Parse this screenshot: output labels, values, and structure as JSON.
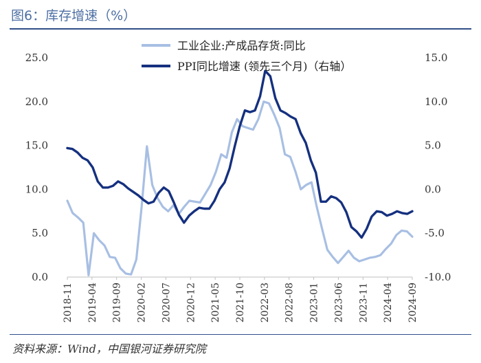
{
  "title": "图6：库存增速（%）",
  "source": "资料来源：Wind，中国银河证券研究院",
  "colors": {
    "series1": "#a8bfe3",
    "series2": "#15307f",
    "rule": "#2f4f86",
    "title": "#4d6fa3"
  },
  "chart_data": {
    "type": "line",
    "title": "库存增速（%）",
    "x_ticks": [
      "2018-11",
      "2019-04",
      "2019-09",
      "2020-02",
      "2020-07",
      "2020-12",
      "2021-05",
      "2021-10",
      "2022-03",
      "2022-08",
      "2023-01",
      "2023-06",
      "2023-11",
      "2024-04",
      "2024-09"
    ],
    "y_left": {
      "range": [
        0,
        25
      ],
      "ticks": [
        "0.0",
        "5.0",
        "10.0",
        "15.0",
        "20.0",
        "25.0"
      ],
      "tick_values": [
        0,
        5,
        10,
        15,
        20,
        25
      ]
    },
    "y_right": {
      "range": [
        -10,
        15
      ],
      "ticks": [
        "-10.0",
        "-5.0",
        "0.0",
        "5.0",
        "10.0",
        "15.0"
      ],
      "tick_values": [
        -10,
        -5,
        0,
        5,
        10,
        15
      ]
    },
    "legend": {
      "placement": "top-center"
    },
    "series": [
      {
        "name": "工业企业:产成品存货:同比",
        "axis": "left",
        "values": [
          8.7,
          7.3,
          6.8,
          6.2,
          0.2,
          5.0,
          4.2,
          3.6,
          2.3,
          2.2,
          1.0,
          0.4,
          0.3,
          2.0,
          8.0,
          14.9,
          10.5,
          9.0,
          8.0,
          7.5,
          8.2,
          7.2,
          8.0,
          8.7,
          8.6,
          8.5,
          9.5,
          10.5,
          12.0,
          14.0,
          13.6,
          16.5,
          18.0,
          17.2,
          17.0,
          16.8,
          18.0,
          20.0,
          19.8,
          18.5,
          17.0,
          14.0,
          13.7,
          12.0,
          10.0,
          10.5,
          10.8,
          8.0,
          5.5,
          3.1,
          2.3,
          1.6,
          2.3,
          3.0,
          2.2,
          1.8,
          2.0,
          2.2,
          2.3,
          2.5,
          3.2,
          3.8,
          4.8,
          5.3,
          5.2,
          4.6
        ]
      },
      {
        "name": "PPI同比增速 (领先三个月)（右轴）",
        "axis": "right",
        "values": [
          4.7,
          4.6,
          4.2,
          3.6,
          3.3,
          2.5,
          0.9,
          0.2,
          0.2,
          0.4,
          0.9,
          0.6,
          0.1,
          -0.3,
          -0.7,
          -1.2,
          -1.6,
          -1.4,
          -0.4,
          0.2,
          -0.2,
          -1.5,
          -2.9,
          -3.8,
          -3.0,
          -2.5,
          -2.1,
          -2.2,
          -2.2,
          -1.3,
          0.0,
          0.8,
          2.4,
          4.9,
          7.2,
          9.0,
          8.8,
          9.0,
          10.6,
          13.5,
          12.9,
          10.4,
          9.0,
          8.7,
          8.3,
          8.0,
          6.4,
          5.3,
          3.3,
          1.9,
          -1.4,
          -1.4,
          -0.8,
          -1.0,
          -1.5,
          -2.6,
          -4.3,
          -4.8,
          -5.5,
          -4.5,
          -3.1,
          -2.5,
          -2.6,
          -3.0,
          -2.8,
          -2.5,
          -2.7,
          -2.8,
          -2.5
        ]
      }
    ]
  }
}
